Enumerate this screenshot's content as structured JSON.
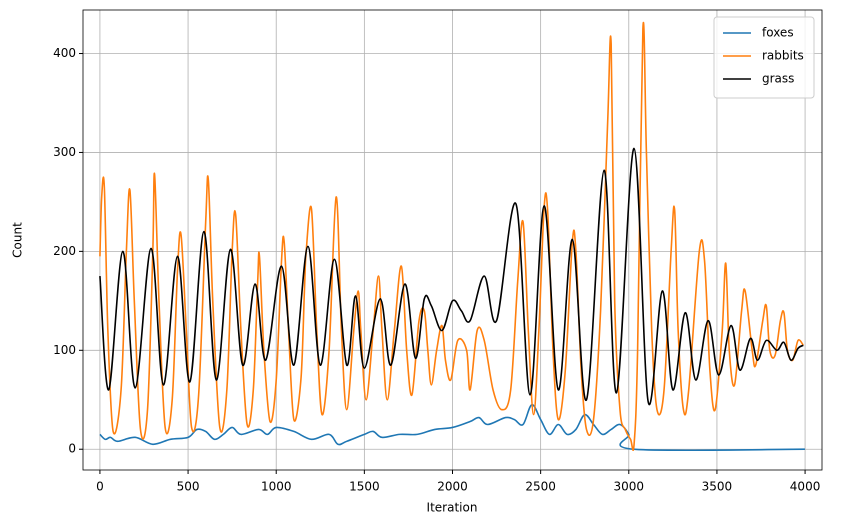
{
  "chart_data": {
    "type": "line",
    "xlabel": "Iteration",
    "ylabel": "Count",
    "xlim": [
      -96,
      4096
    ],
    "ylim": [
      -21,
      444
    ],
    "xticks": [
      0,
      500,
      1000,
      1500,
      2000,
      2500,
      3000,
      3500,
      4000
    ],
    "yticks": [
      0,
      100,
      200,
      300,
      400
    ],
    "grid": true,
    "legend": "upper right",
    "series": [
      {
        "name": "foxes",
        "color": "#1f77b4",
        "x": [
          0,
          30,
          60,
          100,
          200,
          300,
          400,
          500,
          550,
          600,
          650,
          700,
          750,
          800,
          900,
          950,
          1000,
          1100,
          1200,
          1300,
          1350,
          1400,
          1500,
          1550,
          1600,
          1700,
          1800,
          1900,
          2000,
          2100,
          2150,
          2200,
          2300,
          2350,
          2400,
          2450,
          2500,
          2550,
          2600,
          2650,
          2700,
          2750,
          2800,
          2850,
          2900,
          2950,
          3000,
          3030,
          3999
        ],
        "values": [
          15,
          10,
          12,
          8,
          12,
          5,
          10,
          12,
          20,
          18,
          10,
          15,
          22,
          15,
          20,
          15,
          22,
          18,
          10,
          15,
          5,
          8,
          15,
          18,
          12,
          15,
          15,
          20,
          22,
          28,
          32,
          25,
          32,
          30,
          25,
          45,
          30,
          15,
          25,
          15,
          20,
          35,
          25,
          15,
          20,
          25,
          15,
          0,
          0
        ]
      },
      {
        "name": "rabbits",
        "color": "#ff7f0e",
        "x": [
          0,
          10,
          25,
          45,
          75,
          120,
          150,
          170,
          195,
          230,
          270,
          300,
          310,
          335,
          370,
          410,
          440,
          460,
          490,
          520,
          560,
          600,
          615,
          640,
          680,
          720,
          750,
          770,
          800,
          835,
          870,
          895,
          905,
          930,
          965,
          1000,
          1030,
          1045,
          1070,
          1100,
          1140,
          1160,
          1170,
          1200,
          1230,
          1260,
          1300,
          1340,
          1370,
          1400,
          1440,
          1465,
          1480,
          1510,
          1550,
          1580,
          1600,
          1630,
          1670,
          1710,
          1740,
          1770,
          1810,
          1840,
          1860,
          1880,
          1910,
          1940,
          1960,
          1990,
          2030,
          2080,
          2100,
          2140,
          2180,
          2230,
          2280,
          2330,
          2370,
          2400,
          2430,
          2460,
          2490,
          2520,
          2540,
          2570,
          2600,
          2640,
          2680,
          2700,
          2730,
          2760,
          2800,
          2840,
          2880,
          2900,
          2920,
          2950,
          2980,
          3010,
          3030,
          3050,
          3080,
          3100,
          3130,
          3160,
          3200,
          3240,
          3260,
          3280,
          3310,
          3340,
          3400,
          3430,
          3460,
          3490,
          3530,
          3550,
          3570,
          3600,
          3640,
          3660,
          3700,
          3720,
          3760,
          3780,
          3800,
          3830,
          3860,
          3880,
          3900,
          3930,
          3960,
          3990
        ],
        "values": [
          195,
          255,
          265,
          120,
          18,
          60,
          200,
          262,
          150,
          20,
          40,
          200,
          278,
          150,
          22,
          50,
          180,
          217,
          120,
          22,
          55,
          230,
          272,
          150,
          22,
          60,
          200,
          237,
          120,
          25,
          60,
          170,
          195,
          100,
          28,
          70,
          190,
          210,
          120,
          30,
          70,
          160,
          200,
          243,
          120,
          35,
          100,
          255,
          120,
          40,
          120,
          160,
          120,
          50,
          120,
          175,
          120,
          50,
          120,
          185,
          100,
          55,
          130,
          140,
          100,
          65,
          100,
          125,
          90,
          70,
          110,
          100,
          60,
          120,
          110,
          60,
          40,
          60,
          170,
          230,
          120,
          35,
          120,
          245,
          240,
          100,
          30,
          80,
          210,
          200,
          80,
          20,
          30,
          140,
          330,
          410,
          150,
          40,
          20,
          10,
          5,
          100,
          425,
          300,
          120,
          40,
          60,
          200,
          242,
          120,
          40,
          60,
          200,
          190,
          80,
          40,
          120,
          188,
          100,
          65,
          140,
          160,
          100,
          85,
          130,
          145,
          100,
          95,
          130,
          138,
          100,
          90,
          110,
          105
        ]
      },
      {
        "name": "grass",
        "color": "#000000",
        "x": [
          0,
          50,
          130,
          200,
          290,
          360,
          440,
          510,
          590,
          660,
          740,
          810,
          880,
          940,
          1030,
          1100,
          1180,
          1250,
          1330,
          1400,
          1450,
          1500,
          1590,
          1650,
          1730,
          1790,
          1840,
          1880,
          1940,
          2000,
          2050,
          2100,
          2180,
          2250,
          2360,
          2440,
          2520,
          2600,
          2680,
          2760,
          2860,
          2930,
          3030,
          3110,
          3190,
          3250,
          3320,
          3380,
          3450,
          3510,
          3580,
          3630,
          3690,
          3730,
          3780,
          3840,
          3880,
          3920,
          3960,
          3990
        ],
        "values": [
          175,
          60,
          200,
          62,
          203,
          65,
          195,
          68,
          220,
          70,
          202,
          85,
          167,
          90,
          185,
          85,
          205,
          85,
          192,
          85,
          155,
          82,
          152,
          85,
          167,
          92,
          152,
          145,
          120,
          150,
          140,
          130,
          175,
          130,
          248,
          55,
          246,
          60,
          212,
          50,
          282,
          57,
          304,
          48,
          160,
          60,
          138,
          70,
          130,
          75,
          125,
          80,
          112,
          90,
          110,
          100,
          108,
          90,
          102,
          105
        ]
      }
    ]
  }
}
